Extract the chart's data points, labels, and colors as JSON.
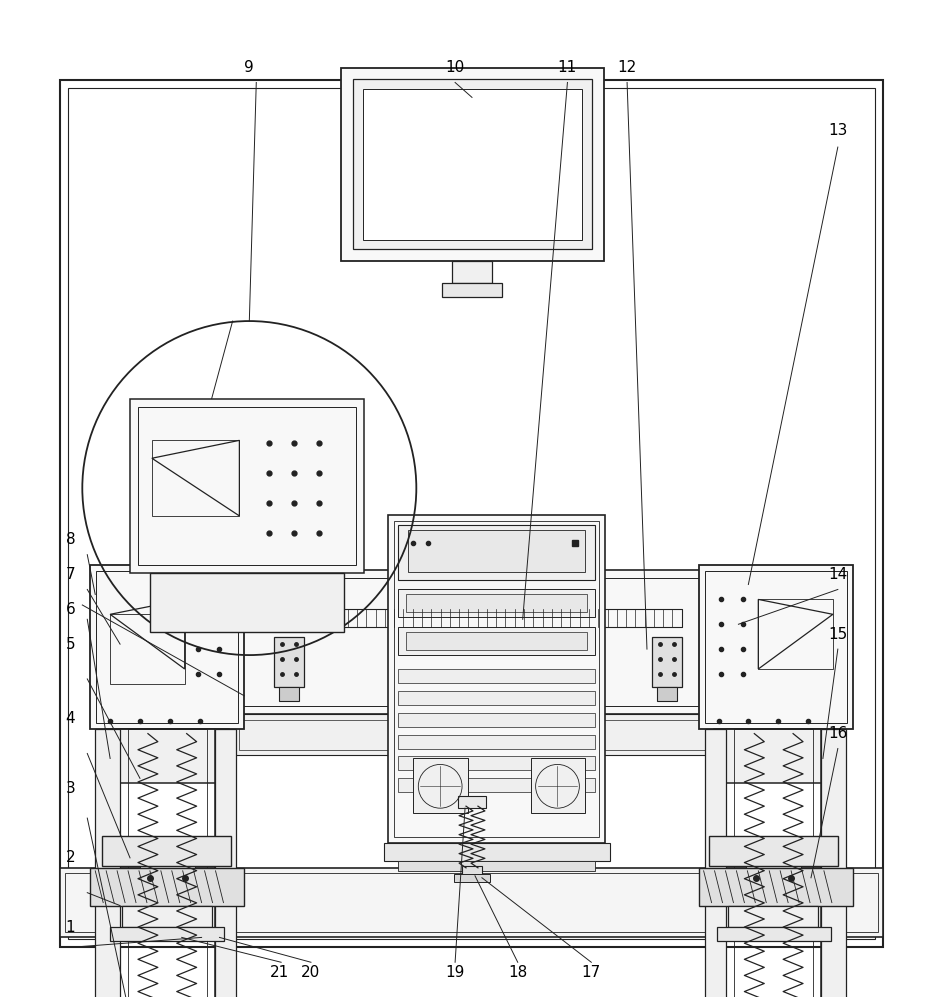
{
  "bg_color": "#ffffff",
  "lc": "#222222",
  "fig_width": 9.43,
  "fig_height": 10.0,
  "label_color": "#000000",
  "label_fontsize": 11,
  "ann_lw": 0.7,
  "ann_color": "#222222"
}
